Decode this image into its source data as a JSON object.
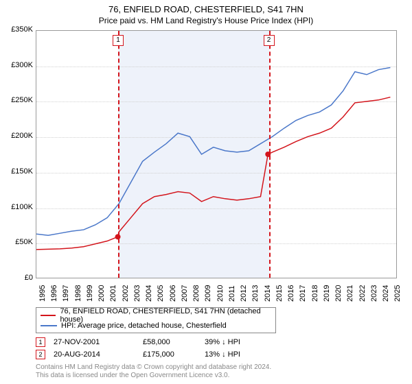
{
  "title": "76, ENFIELD ROAD, CHESTERFIELD, S41 7HN",
  "subtitle": "Price paid vs. HM Land Registry's House Price Index (HPI)",
  "chart": {
    "type": "line",
    "background_color": "#ffffff",
    "grid_color": "#d0d0d0",
    "border_color": "#999999",
    "shaded_band_color": "#eef2fa",
    "xlim": [
      1995,
      2025.5
    ],
    "ylim": [
      0,
      350000
    ],
    "ytick_step": 50000,
    "y_ticks": [
      "£0",
      "£50K",
      "£100K",
      "£150K",
      "£200K",
      "£250K",
      "£300K",
      "£350K"
    ],
    "x_ticks": [
      "1995",
      "1996",
      "1997",
      "1998",
      "1999",
      "2000",
      "2001",
      "2002",
      "2003",
      "2004",
      "2005",
      "2006",
      "2007",
      "2008",
      "2009",
      "2010",
      "2011",
      "2012",
      "2013",
      "2014",
      "2015",
      "2016",
      "2017",
      "2018",
      "2019",
      "2020",
      "2021",
      "2022",
      "2023",
      "2024",
      "2025"
    ],
    "tick_fontsize": 11,
    "title_fontsize": 13,
    "subtitle_fontsize": 12,
    "shaded_band": {
      "x_start": 2001.9,
      "x_end": 2014.63
    },
    "series": [
      {
        "name": "property",
        "label": "76, ENFIELD ROAD, CHESTERFIELD, S41 7HN (detached house)",
        "color": "#d3141b",
        "line_width": 1.5,
        "data": [
          [
            1995,
            40000
          ],
          [
            1996,
            40500
          ],
          [
            1997,
            41000
          ],
          [
            1998,
            42000
          ],
          [
            1999,
            44000
          ],
          [
            2000,
            48000
          ],
          [
            2001,
            52000
          ],
          [
            2001.9,
            58000
          ],
          [
            2002,
            65000
          ],
          [
            2003,
            85000
          ],
          [
            2004,
            105000
          ],
          [
            2005,
            115000
          ],
          [
            2006,
            118000
          ],
          [
            2007,
            122000
          ],
          [
            2008,
            120000
          ],
          [
            2009,
            108000
          ],
          [
            2010,
            115000
          ],
          [
            2011,
            112000
          ],
          [
            2012,
            110000
          ],
          [
            2013,
            112000
          ],
          [
            2014,
            115000
          ],
          [
            2014.63,
            175000
          ],
          [
            2015,
            178000
          ],
          [
            2016,
            185000
          ],
          [
            2017,
            193000
          ],
          [
            2018,
            200000
          ],
          [
            2019,
            205000
          ],
          [
            2020,
            212000
          ],
          [
            2021,
            228000
          ],
          [
            2022,
            248000
          ],
          [
            2023,
            250000
          ],
          [
            2024,
            252000
          ],
          [
            2025,
            256000
          ]
        ]
      },
      {
        "name": "hpi",
        "label": "HPI: Average price, detached house, Chesterfield",
        "color": "#4a77c9",
        "line_width": 1.5,
        "data": [
          [
            1995,
            62000
          ],
          [
            1996,
            60000
          ],
          [
            1997,
            63000
          ],
          [
            1998,
            66000
          ],
          [
            1999,
            68000
          ],
          [
            2000,
            75000
          ],
          [
            2001,
            85000
          ],
          [
            2002,
            105000
          ],
          [
            2003,
            135000
          ],
          [
            2004,
            165000
          ],
          [
            2005,
            178000
          ],
          [
            2006,
            190000
          ],
          [
            2007,
            205000
          ],
          [
            2008,
            200000
          ],
          [
            2009,
            175000
          ],
          [
            2010,
            185000
          ],
          [
            2011,
            180000
          ],
          [
            2012,
            178000
          ],
          [
            2013,
            180000
          ],
          [
            2014,
            190000
          ],
          [
            2015,
            200000
          ],
          [
            2016,
            212000
          ],
          [
            2017,
            223000
          ],
          [
            2018,
            230000
          ],
          [
            2019,
            235000
          ],
          [
            2020,
            245000
          ],
          [
            2021,
            265000
          ],
          [
            2022,
            292000
          ],
          [
            2023,
            288000
          ],
          [
            2024,
            295000
          ],
          [
            2025,
            298000
          ]
        ]
      }
    ],
    "events": [
      {
        "id": "1",
        "x": 2001.9,
        "color": "#d3141b",
        "marker_y": 58000
      },
      {
        "id": "2",
        "x": 2014.63,
        "color": "#d3141b",
        "marker_y": 175000
      }
    ]
  },
  "legend": {
    "rows": [
      {
        "color": "#d3141b",
        "label": "76, ENFIELD ROAD, CHESTERFIELD, S41 7HN (detached house)"
      },
      {
        "color": "#4a77c9",
        "label": "HPI: Average price, detached house, Chesterfield"
      }
    ]
  },
  "sales": [
    {
      "id": "1",
      "date": "27-NOV-2001",
      "price": "£58,000",
      "delta": "39% ↓ HPI",
      "color": "#d3141b"
    },
    {
      "id": "2",
      "date": "20-AUG-2014",
      "price": "£175,000",
      "delta": "13% ↓ HPI",
      "color": "#d3141b"
    }
  ],
  "footer": {
    "line1": "Contains HM Land Registry data © Crown copyright and database right 2024.",
    "line2": "This data is licensed under the Open Government Licence v3.0."
  }
}
